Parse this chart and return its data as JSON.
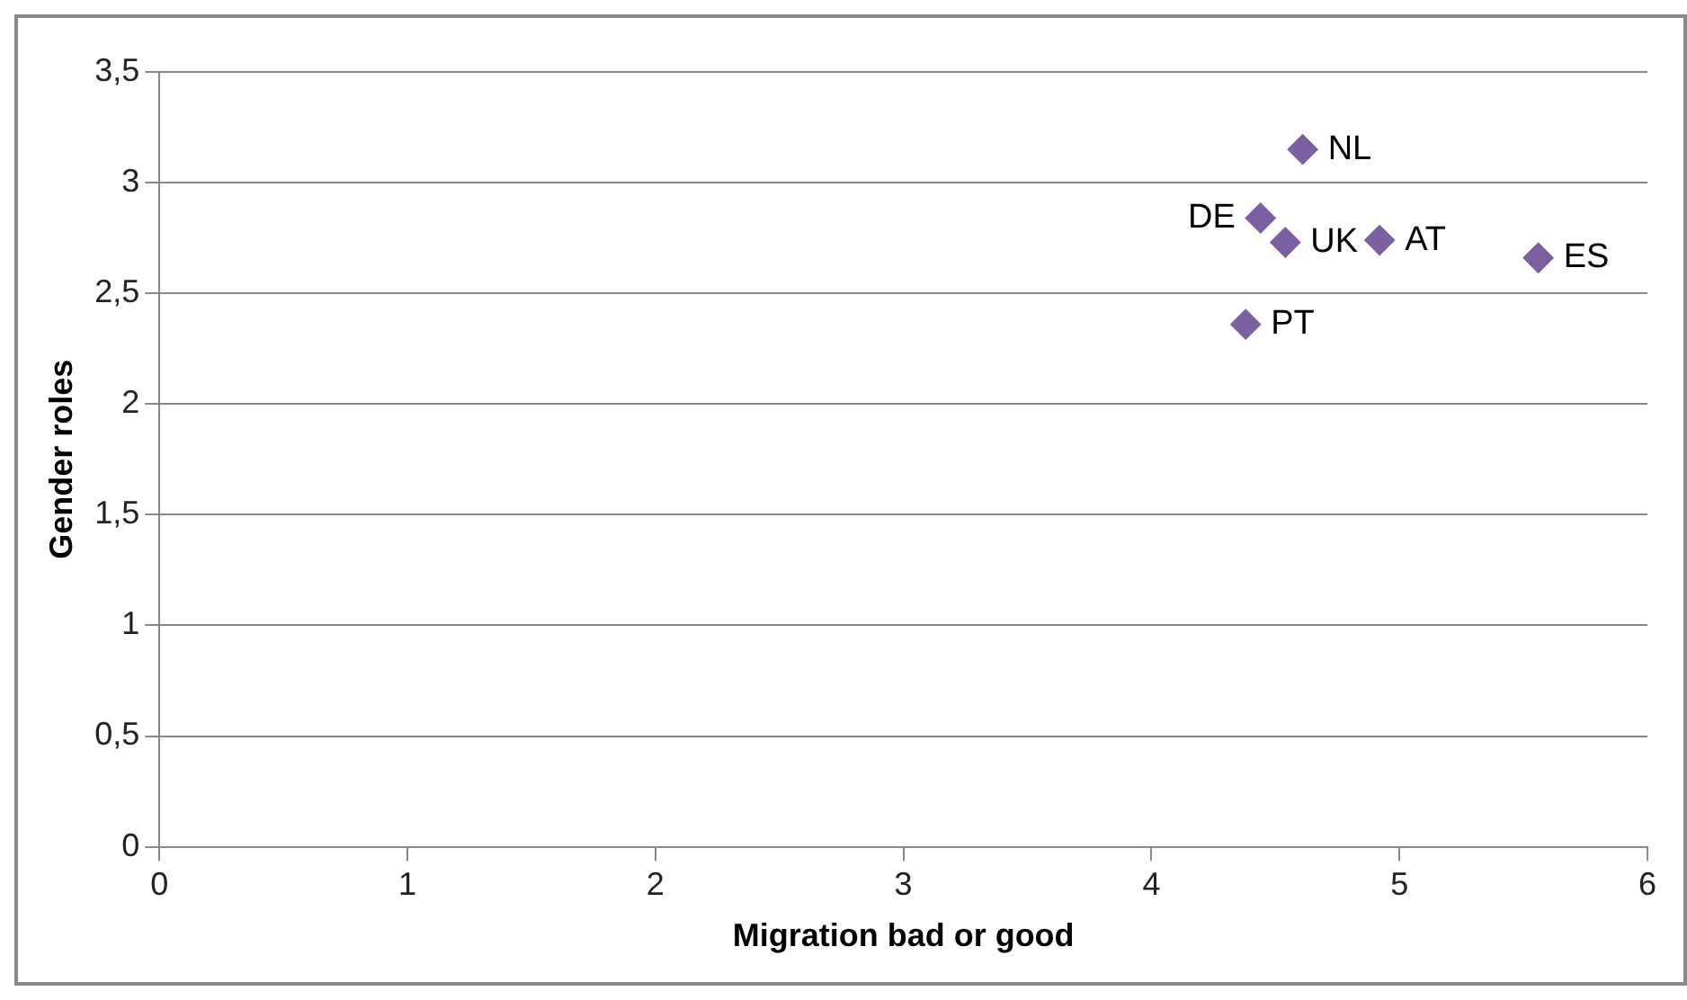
{
  "chart_data": {
    "type": "scatter",
    "xlabel": "Migration bad or good",
    "ylabel": "Gender roles",
    "x": [
      4.61,
      4.44,
      4.54,
      4.92,
      5.56,
      4.38
    ],
    "values": [
      3.15,
      2.84,
      2.73,
      2.74,
      2.66,
      2.36
    ],
    "color": "#7b5fa0",
    "marker": "diamond",
    "xlim": [
      0,
      6
    ],
    "xticks": [
      0,
      1,
      2,
      3,
      4,
      5,
      6
    ],
    "ylim": [
      0,
      3.5
    ],
    "yticks": [
      {
        "value": 0,
        "label": "0"
      },
      {
        "value": 0.5,
        "label": "0,5"
      },
      {
        "value": 1,
        "label": "1"
      },
      {
        "value": 1.5,
        "label": "1,5"
      },
      {
        "value": 2,
        "label": "2"
      },
      {
        "value": 2.5,
        "label": "2,5"
      },
      {
        "value": 3,
        "label": "3"
      },
      {
        "value": 3.5,
        "label": "3,5"
      }
    ],
    "grid": "y",
    "legend": false,
    "annotations": [
      {
        "text": "NL",
        "x": 4.61,
        "y": 3.15
      },
      {
        "text": "DE",
        "x": 4.44,
        "y": 2.84
      },
      {
        "text": "UK",
        "x": 4.54,
        "y": 2.73
      },
      {
        "text": "AT",
        "x": 4.92,
        "y": 2.74
      },
      {
        "text": "ES",
        "x": 5.56,
        "y": 2.66
      },
      {
        "text": "PT",
        "x": 4.38,
        "y": 2.36
      }
    ]
  }
}
